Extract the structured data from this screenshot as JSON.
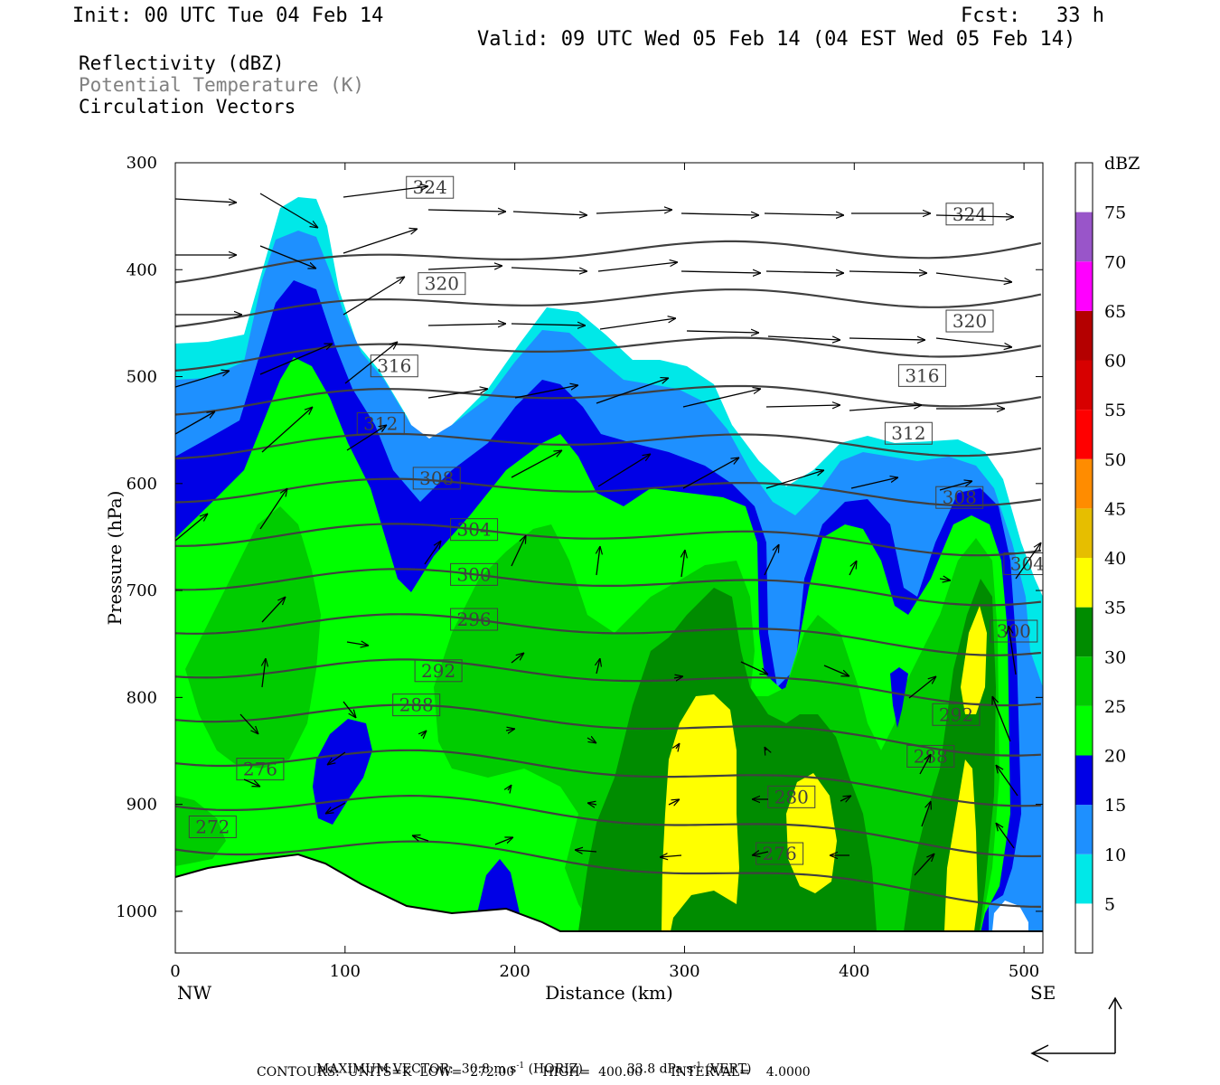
{
  "header": {
    "init": "Init: 00 UTC Tue 04 Feb 14",
    "fcst": "Fcst:   33 h",
    "valid": "Valid: 09 UTC Wed 05 Feb 14 (04 EST Wed 05 Feb 14)"
  },
  "fields": [
    {
      "text": "Reflectivity (dBZ)",
      "color": "#000000"
    },
    {
      "text": "Potential Temperature (K)",
      "color": "#808080"
    },
    {
      "text": "Circulation Vectors",
      "color": "#000000"
    }
  ],
  "chart_data": {
    "type": "heatmap",
    "xlabel": "Distance (km)",
    "ylabel": "Pressure (hPa)",
    "xlim": [
      0,
      513
    ],
    "ylim": [
      300,
      1040
    ],
    "x_ticks": [
      0,
      100,
      200,
      300,
      400,
      500
    ],
    "y_ticks": [
      300,
      400,
      500,
      600,
      700,
      800,
      900,
      1000
    ],
    "x_end_labels": {
      "left": "NW",
      "right": "SE"
    },
    "colorbar": {
      "title": "dBZ",
      "levels": [
        5,
        10,
        15,
        20,
        25,
        30,
        35,
        40,
        45,
        50,
        55,
        60,
        65,
        70,
        75
      ],
      "colors": [
        "#ffffff",
        "#00e8e8",
        "#1e90ff",
        "#0000e6",
        "#00ff00",
        "#00cc00",
        "#008c00",
        "#ffff00",
        "#e6be00",
        "#ff8c00",
        "#ff0000",
        "#d70000",
        "#b40000",
        "#ff00ff",
        "#9955c9"
      ]
    },
    "theta_contour_labels": [
      {
        "value": "324",
        "x": 150,
        "p": 323
      },
      {
        "value": "324",
        "x": 468,
        "p": 348
      },
      {
        "value": "320",
        "x": 157,
        "p": 413
      },
      {
        "value": "320",
        "x": 468,
        "p": 448
      },
      {
        "value": "316",
        "x": 129,
        "p": 490
      },
      {
        "value": "316",
        "x": 440,
        "p": 499
      },
      {
        "value": "312",
        "x": 121,
        "p": 544
      },
      {
        "value": "312",
        "x": 432,
        "p": 553
      },
      {
        "value": "308",
        "x": 154,
        "p": 595
      },
      {
        "value": "308",
        "x": 462,
        "p": 613
      },
      {
        "value": "304",
        "x": 176,
        "p": 643
      },
      {
        "value": "304",
        "x": 502,
        "p": 675
      },
      {
        "value": "300",
        "x": 176,
        "p": 685
      },
      {
        "value": "300",
        "x": 494,
        "p": 738
      },
      {
        "value": "296",
        "x": 176,
        "p": 727
      },
      {
        "value": "292",
        "x": 155,
        "p": 775
      },
      {
        "value": "292",
        "x": 460,
        "p": 816
      },
      {
        "value": "288",
        "x": 142,
        "p": 807
      },
      {
        "value": "288",
        "x": 445,
        "p": 855
      },
      {
        "value": "280",
        "x": 363,
        "p": 893
      },
      {
        "value": "276",
        "x": 50,
        "p": 867
      },
      {
        "value": "276",
        "x": 356,
        "p": 946
      },
      {
        "value": "272",
        "x": 22,
        "p": 921
      }
    ],
    "contour_info": {
      "units": "K",
      "low": 272.0,
      "high": 400.0,
      "interval": 4.0
    },
    "max_vector": {
      "horiz": "30.8 m s⁻¹ (HORIZ)",
      "vert": "33.8 dPa s⁻¹ (VERT)"
    }
  },
  "footer": {
    "max_vector_label": "MAXIMUM VECTOR:",
    "horiz_value": "30.8 m s",
    "horiz_sup": "-1",
    "horiz_unit": "(HORIZ)",
    "vert_value": "33.8 dPa s",
    "vert_sup": "-1",
    "vert_unit": "(VERT)",
    "contours": "CONTOURS:  UNITS=K  LOW=  272.00       HIGH=  400.00       INTERVAL=    4.0000"
  }
}
